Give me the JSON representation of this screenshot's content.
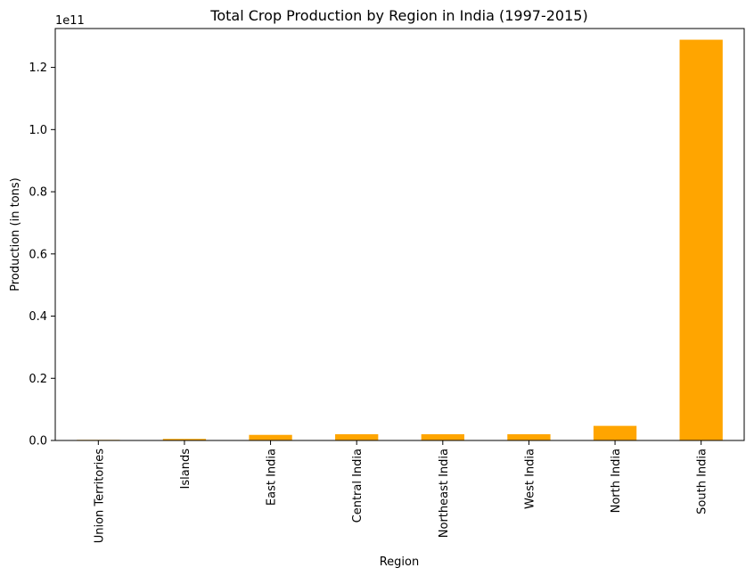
{
  "chart_data": {
    "type": "bar",
    "title": "Total Crop Production by Region in India (1997-2015)",
    "xlabel": "Region",
    "ylabel": "Production (in tons)",
    "y_multiplier_label": "1e11",
    "categories": [
      "Union Territories",
      "Islands",
      "East India",
      "Central India",
      "Northeast India",
      "West India",
      "North India",
      "South India"
    ],
    "values": [
      200000000,
      500000000,
      1800000000,
      2000000000,
      2000000000,
      2000000000,
      4700000000,
      128900000000
    ],
    "ylim": [
      0,
      132500000000
    ],
    "yticks": [
      0,
      20000000000,
      40000000000,
      60000000000,
      80000000000,
      100000000000,
      120000000000
    ],
    "ytick_labels": [
      "0.0",
      "0.2",
      "0.4",
      "0.6",
      "0.8",
      "1.0",
      "1.2"
    ],
    "bar_color": "#FFA500",
    "grid": false,
    "legend": "none"
  }
}
